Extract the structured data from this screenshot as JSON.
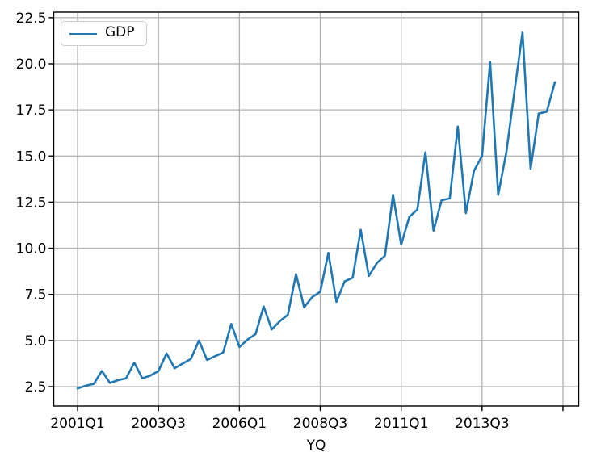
{
  "colors": {
    "line": "#1f77b4",
    "grid": "#b0b0b0",
    "spine": "#000000",
    "text": "#000000",
    "legend_border": "#cccccc",
    "background": "#ffffff"
  },
  "legend": {
    "label": "GDP",
    "position": "upper-left"
  },
  "chart_data": {
    "type": "line",
    "title": "",
    "xlabel": "YQ",
    "ylabel": "",
    "categories": [
      "2001Q1",
      "2001Q2",
      "2001Q3",
      "2001Q4",
      "2002Q1",
      "2002Q2",
      "2002Q3",
      "2002Q4",
      "2003Q1",
      "2003Q2",
      "2003Q3",
      "2003Q4",
      "2004Q1",
      "2004Q2",
      "2004Q3",
      "2004Q4",
      "2005Q1",
      "2005Q2",
      "2005Q3",
      "2005Q4",
      "2006Q1",
      "2006Q2",
      "2006Q3",
      "2006Q4",
      "2007Q1",
      "2007Q2",
      "2007Q3",
      "2007Q4",
      "2008Q1",
      "2008Q2",
      "2008Q3",
      "2008Q4",
      "2009Q1",
      "2009Q2",
      "2009Q3",
      "2009Q4",
      "2010Q1",
      "2010Q2",
      "2010Q3",
      "2010Q4",
      "2011Q1",
      "2011Q2",
      "2011Q3",
      "2011Q4",
      "2012Q1",
      "2012Q2",
      "2012Q3",
      "2012Q4",
      "2013Q1",
      "2013Q2",
      "2013Q3",
      "2013Q4",
      "2014Q1",
      "2014Q2",
      "2014Q3",
      "2014Q4",
      "2015Q1",
      "2015Q2",
      "2015Q3",
      "2015Q4"
    ],
    "series": [
      {
        "name": "GDP",
        "color": "#1f77b4",
        "values": [
          2.4,
          2.55,
          2.65,
          3.35,
          2.7,
          2.85,
          2.95,
          3.8,
          2.95,
          3.1,
          3.35,
          4.3,
          3.5,
          3.75,
          4.0,
          5.0,
          3.95,
          4.15,
          4.35,
          5.9,
          4.65,
          5.05,
          5.35,
          6.85,
          5.6,
          6.05,
          6.4,
          8.6,
          6.8,
          7.35,
          7.65,
          9.75,
          7.1,
          8.2,
          8.4,
          11.0,
          8.5,
          9.2,
          9.6,
          12.9,
          10.2,
          11.7,
          12.1,
          15.2,
          10.95,
          12.6,
          12.7,
          16.6,
          11.9,
          14.2,
          15.0,
          20.1,
          12.9,
          15.2,
          18.5,
          21.7,
          14.3,
          17.3,
          17.4,
          19.0
        ]
      }
    ],
    "ylim": [
      1.45,
      22.8
    ],
    "xlim_index": [
      -2.95,
      61.95
    ],
    "yticks": [
      2.5,
      5.0,
      7.5,
      10.0,
      12.5,
      15.0,
      17.5,
      20.0,
      22.5
    ],
    "xticks": [
      {
        "index": 0,
        "label": "2001Q1"
      },
      {
        "index": 10,
        "label": "2003Q3"
      },
      {
        "index": 20,
        "label": "2006Q1"
      },
      {
        "index": 30,
        "label": "2008Q3"
      },
      {
        "index": 40,
        "label": "2011Q1"
      },
      {
        "index": 50,
        "label": "2013Q3"
      },
      {
        "index": 60,
        "label": ""
      }
    ],
    "grid": true,
    "legend_position": "upper-left"
  }
}
